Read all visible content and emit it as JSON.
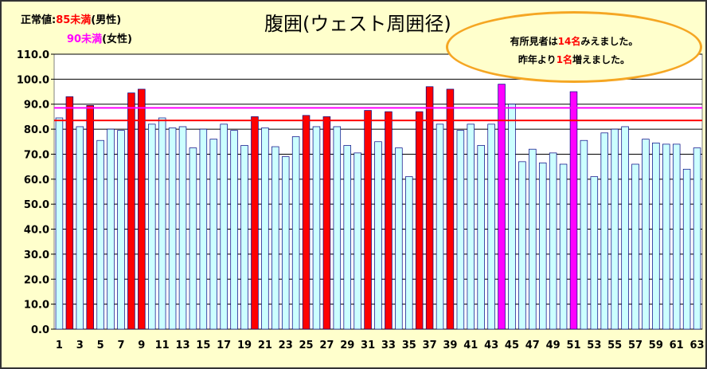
{
  "legend": {
    "male_prefix": "正常値:",
    "male_value": "85未満",
    "male_suffix": "(男性)",
    "female_value": "90未満",
    "female_suffix": "(女性)"
  },
  "callout": {
    "line1_a": "有所見者は",
    "line1_num": "14名",
    "line1_b": "みえました。",
    "line2_a": "昨年より",
    "line2_num": "1名",
    "line2_b": "増えました。"
  },
  "colors": {
    "normal_bar": "#ccffff",
    "bar_outline": "#000080",
    "male_flag": "#ff0000",
    "female_flag": "#ff00ff",
    "male_line": "#ff0000",
    "female_line": "#ff00ff",
    "background": "#ffffcc"
  },
  "chart_data": {
    "type": "bar",
    "title": "腹囲(ウェスト周囲径)",
    "xlabel": "",
    "ylabel": "",
    "ylim": [
      0,
      110
    ],
    "yticks": [
      "0.0",
      "10.0",
      "20.0",
      "30.0",
      "40.0",
      "50.0",
      "60.0",
      "70.0",
      "80.0",
      "90.0",
      "100.0",
      "110.0"
    ],
    "x_tick_labels": [
      "1",
      "3",
      "5",
      "7",
      "9",
      "11",
      "13",
      "15",
      "17",
      "19",
      "21",
      "23",
      "25",
      "27",
      "29",
      "31",
      "33",
      "35",
      "37",
      "39",
      "41",
      "43",
      "45",
      "47",
      "49",
      "51",
      "53",
      "55",
      "57",
      "59",
      "61",
      "63"
    ],
    "reference_lines": {
      "male": 85,
      "female": 90
    },
    "values": [
      84.5,
      93.0,
      81.0,
      89.5,
      75.5,
      80.0,
      79.5,
      94.5,
      96.0,
      82.0,
      84.5,
      80.5,
      81.0,
      72.5,
      80.0,
      76.0,
      82.0,
      79.5,
      73.5,
      85.0,
      80.5,
      73.0,
      69.0,
      77.0,
      85.5,
      81.0,
      85.0,
      81.0,
      73.5,
      70.5,
      87.5,
      75.0,
      87.0,
      72.5,
      61.0,
      87.0,
      97.0,
      82.0,
      96.0,
      79.5,
      82.0,
      73.5,
      82.0,
      98.0,
      90.0,
      67.0,
      72.0,
      66.5,
      70.5,
      66.0,
      95.0,
      75.5,
      61.0,
      78.5,
      80.0,
      81.0,
      66.0,
      76.0,
      74.5,
      74.0,
      74.0,
      64.0,
      72.5
    ],
    "flags": [
      "n",
      "m",
      "n",
      "m",
      "n",
      "n",
      "n",
      "m",
      "m",
      "n",
      "n",
      "n",
      "n",
      "n",
      "n",
      "n",
      "n",
      "n",
      "n",
      "m",
      "n",
      "n",
      "n",
      "n",
      "m",
      "n",
      "m",
      "n",
      "n",
      "n",
      "m",
      "n",
      "m",
      "n",
      "n",
      "m",
      "m",
      "n",
      "m",
      "n",
      "n",
      "n",
      "n",
      "f",
      "n",
      "n",
      "n",
      "n",
      "n",
      "n",
      "f",
      "n",
      "n",
      "n",
      "n",
      "n",
      "n",
      "n",
      "n",
      "n",
      "n",
      "n",
      "n"
    ],
    "grid": true
  }
}
